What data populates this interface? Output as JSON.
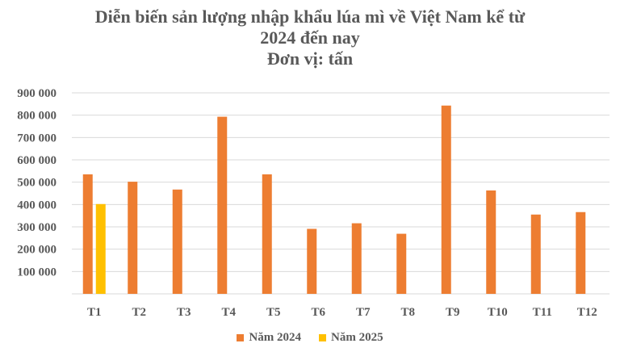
{
  "chart_data": {
    "type": "bar",
    "title": "Diễn biến sản lượng nhập khẩu lúa mì về Việt Nam kể từ 2024 đến nay",
    "title_lines": [
      "Diễn biến sản lượng nhập khẩu lúa mì về Việt Nam kể từ",
      "2024 đến nay",
      "Đơn vị: tấn"
    ],
    "xlabel": "",
    "ylabel": "",
    "categories": [
      "T1",
      "T2",
      "T3",
      "T4",
      "T5",
      "T6",
      "T7",
      "T8",
      "T9",
      "T10",
      "T11",
      "T12"
    ],
    "series": [
      {
        "name": "Năm 2024",
        "color": "#ED7D31",
        "values": [
          535000,
          502000,
          467000,
          793000,
          535000,
          291000,
          316000,
          269000,
          843000,
          463000,
          355000,
          366000
        ]
      },
      {
        "name": "Năm 2025",
        "color": "#FFC000",
        "values": [
          402000,
          null,
          null,
          null,
          null,
          null,
          null,
          null,
          null,
          null,
          null,
          null
        ]
      }
    ],
    "ylim": [
      0,
      900000
    ],
    "yticks": [
      100000,
      200000,
      300000,
      400000,
      500000,
      600000,
      700000,
      800000,
      900000
    ],
    "ytick_labels": [
      "100 000",
      "200 000",
      "300 000",
      "400 000",
      "500 000",
      "600 000",
      "700 000",
      "800 000",
      "900 000"
    ],
    "grid": true,
    "legend_position": "bottom"
  }
}
